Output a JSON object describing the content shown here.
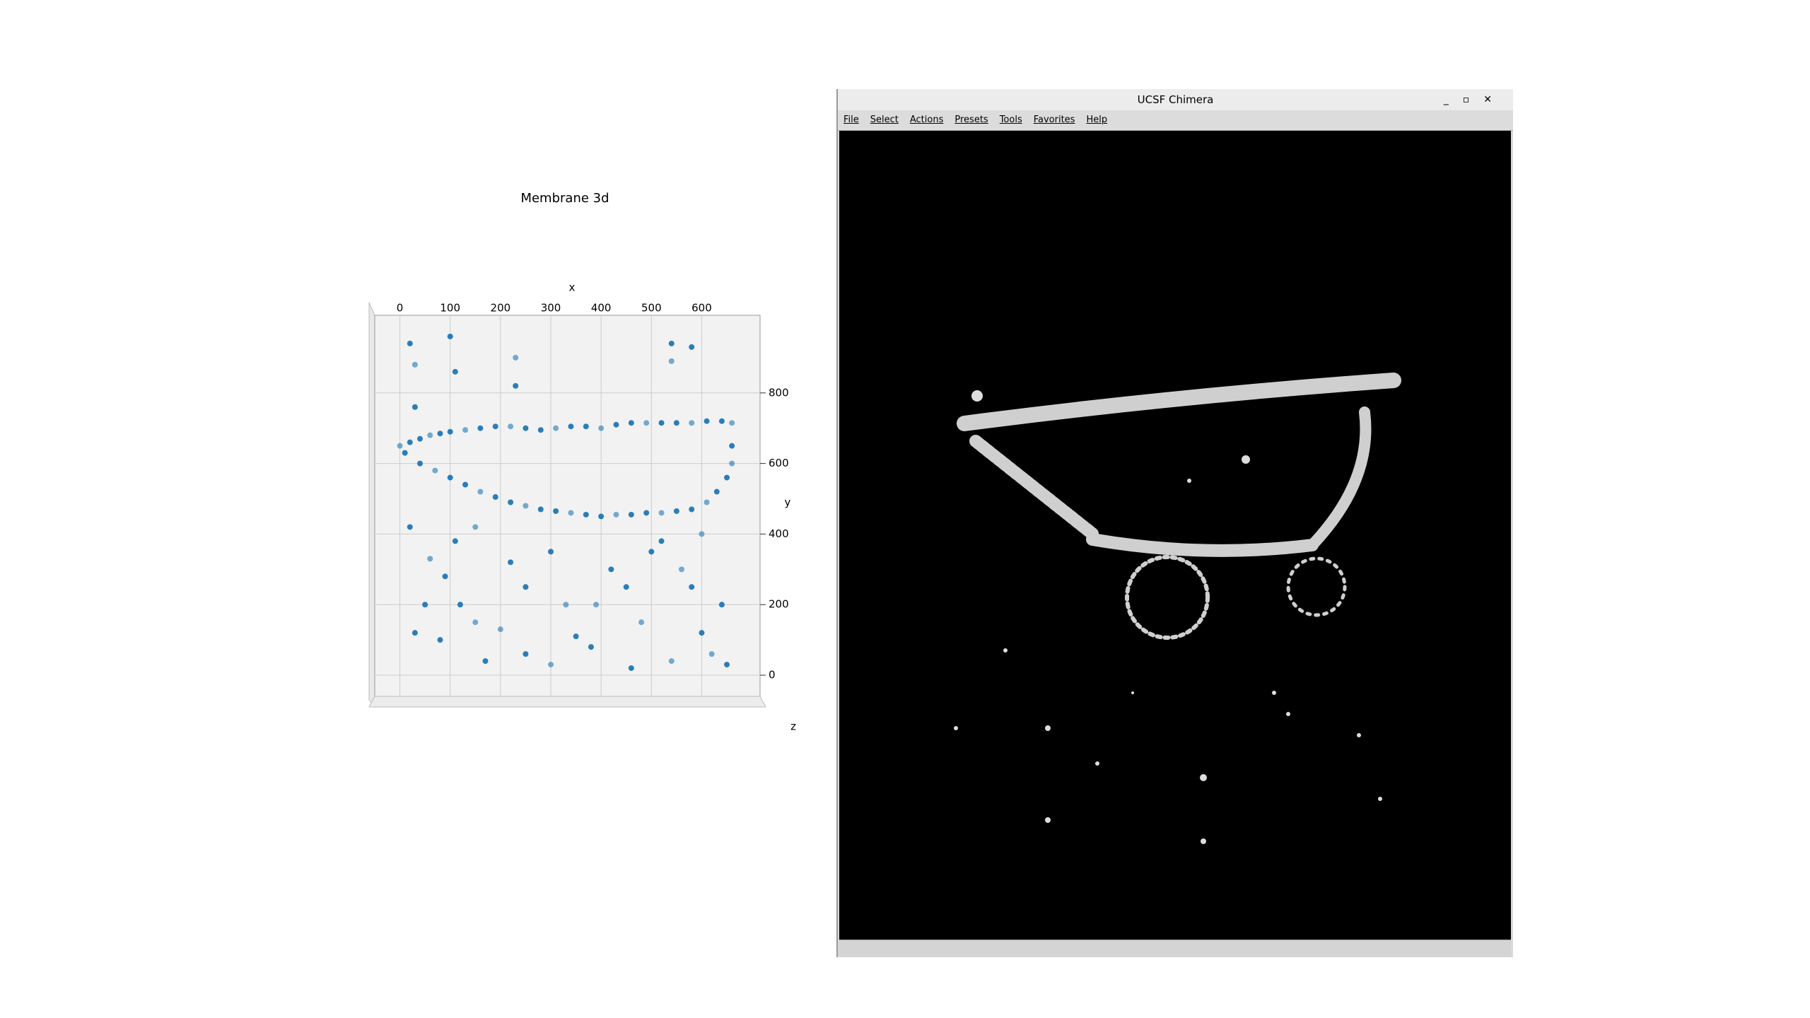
{
  "chart_data": {
    "type": "scatter",
    "title": "Membrane 3d",
    "x_label": "x",
    "y_label": "y",
    "z_label": "z",
    "color": "#1f77b4",
    "grid": true,
    "xlim": [
      -50,
      716
    ],
    "ylim": [
      -60,
      1020
    ],
    "xticks": [
      0,
      100,
      200,
      300,
      400,
      500,
      600
    ],
    "yticks": [
      0,
      200,
      400,
      600,
      800
    ],
    "x": [
      0,
      20,
      40,
      60,
      80,
      100,
      130,
      160,
      190,
      220,
      250,
      280,
      310,
      340,
      370,
      400,
      430,
      460,
      490,
      520,
      550,
      580,
      610,
      640,
      660,
      10,
      40,
      70,
      100,
      130,
      160,
      190,
      220,
      250,
      280,
      310,
      340,
      370,
      400,
      430,
      460,
      490,
      520,
      550,
      580,
      610,
      630,
      650,
      660,
      660,
      20,
      60,
      90,
      120,
      150,
      30,
      80,
      200,
      170,
      250,
      300,
      350,
      380,
      390,
      420,
      450,
      480,
      500,
      520,
      560,
      580,
      600,
      620,
      650,
      640,
      600,
      300,
      250,
      330,
      220,
      110,
      150,
      50,
      460,
      540,
      20,
      100,
      230,
      540,
      580,
      30,
      110,
      230,
      540,
      30
    ],
    "y": [
      650,
      660,
      670,
      680,
      685,
      690,
      695,
      700,
      705,
      705,
      700,
      695,
      700,
      705,
      705,
      700,
      710,
      715,
      715,
      715,
      715,
      715,
      720,
      720,
      715,
      630,
      600,
      580,
      560,
      540,
      520,
      505,
      490,
      480,
      470,
      465,
      460,
      455,
      450,
      455,
      455,
      460,
      460,
      465,
      470,
      490,
      520,
      560,
      600,
      650,
      420,
      330,
      280,
      200,
      150,
      120,
      100,
      130,
      40,
      60,
      30,
      110,
      80,
      200,
      300,
      250,
      150,
      350,
      380,
      300,
      250,
      120,
      60,
      30,
      200,
      400,
      350,
      250,
      200,
      320,
      380,
      420,
      200,
      20,
      40,
      940,
      960,
      900,
      940,
      930,
      880,
      860,
      820,
      890,
      760
    ]
  },
  "window": {
    "title": "UCSF Chimera",
    "menu": [
      "File",
      "Select",
      "Actions",
      "Presets",
      "Tools",
      "Favorites",
      "Help"
    ]
  }
}
